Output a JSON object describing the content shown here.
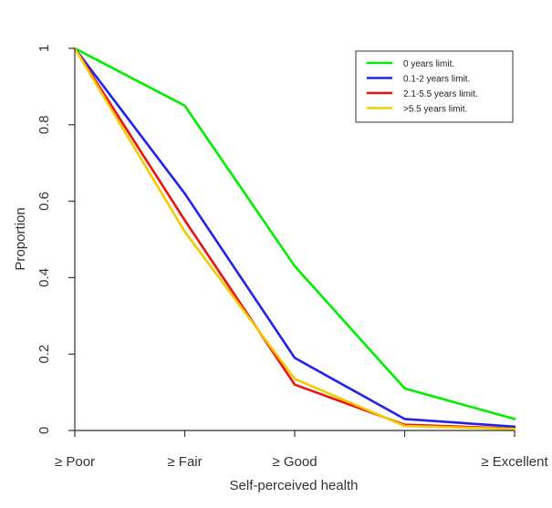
{
  "chart_data": {
    "type": "line",
    "title": "",
    "xlabel": "Self-perceived health",
    "ylabel": "Proportion",
    "categories": [
      "≥ Poor",
      "≥ Fair",
      "≥ Good",
      "",
      "≥ Excellent"
    ],
    "ylim": [
      0,
      1
    ],
    "yticks": [
      "0",
      "0.2",
      "0.4",
      "0.6",
      "0.8",
      "1"
    ],
    "grid": false,
    "legend_position": "top-right",
    "series": [
      {
        "name": "0 years limit.",
        "color": "#00ee00",
        "values": [
          1,
          0.85,
          0.43,
          0.11,
          0.03
        ]
      },
      {
        "name": "0.1-2 years limit.",
        "color": "#2222ee",
        "values": [
          1,
          0.62,
          0.19,
          0.03,
          0.01
        ]
      },
      {
        "name": "2.1-5.5 years limit.",
        "color": "#ee1111",
        "values": [
          1,
          0.55,
          0.12,
          0.015,
          0.005
        ]
      },
      {
        "name": ">5.5 years limit.",
        "color": "#f2cc00",
        "values": [
          1,
          0.52,
          0.135,
          0.012,
          0.004
        ]
      }
    ]
  }
}
